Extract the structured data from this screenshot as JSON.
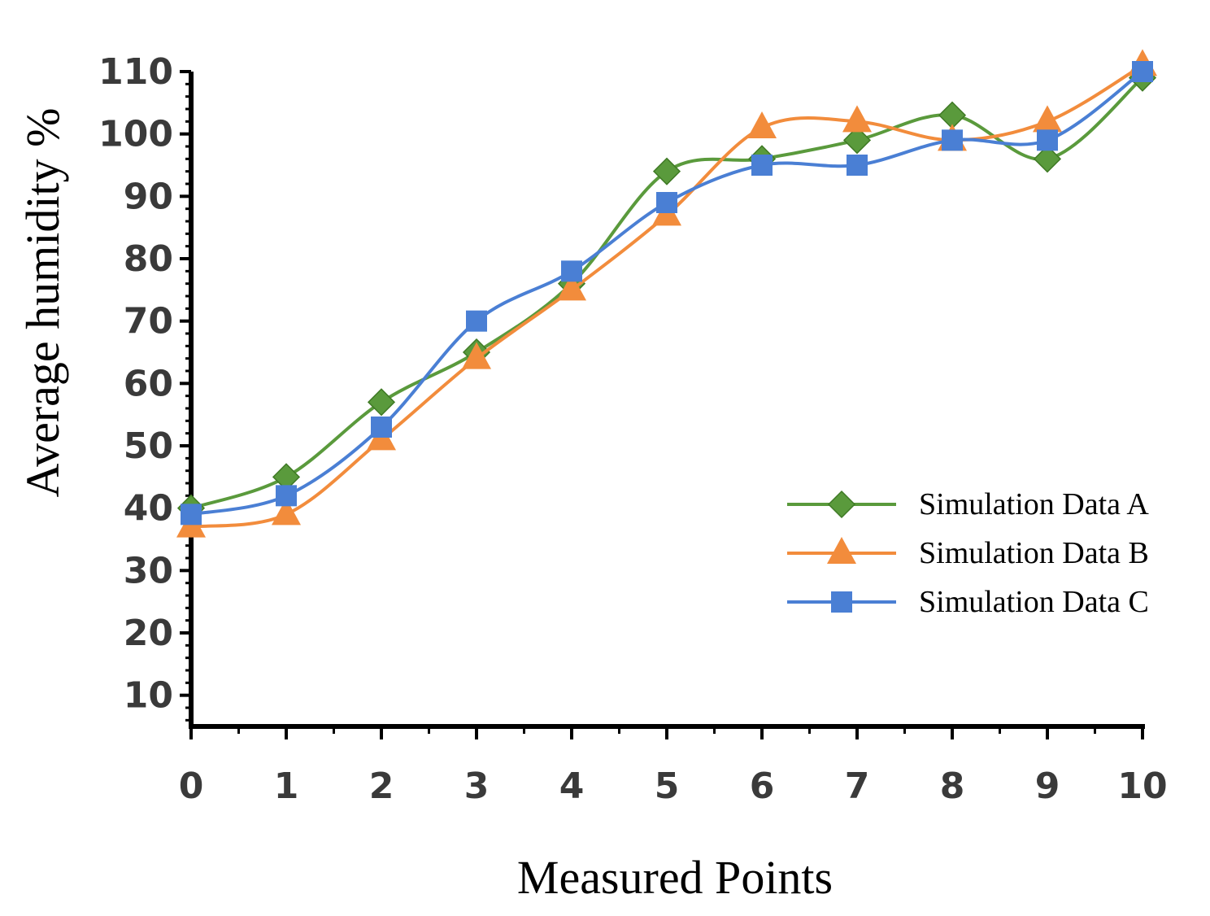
{
  "chart_data": {
    "type": "line",
    "title": "",
    "xlabel": "Measured Points",
    "ylabel": "Average humidity %",
    "x": [
      0,
      1,
      2,
      3,
      4,
      5,
      6,
      7,
      8,
      9,
      10
    ],
    "xlim": [
      0,
      10
    ],
    "ylim": [
      5,
      110
    ],
    "xticks": [
      "0",
      "1",
      "2",
      "3",
      "4",
      "5",
      "6",
      "7",
      "8",
      "9",
      "10"
    ],
    "yticks": [
      10,
      20,
      30,
      40,
      50,
      60,
      70,
      80,
      90,
      100,
      110
    ],
    "grid": false,
    "legend_position": "right",
    "series": [
      {
        "name": "Simulation Data A",
        "color": "#5a9a3c",
        "marker": "diamond",
        "values": [
          40,
          45,
          57,
          65,
          76,
          94,
          96,
          99,
          103,
          96,
          109
        ]
      },
      {
        "name": "Simulation Data B",
        "color": "#f28c3c",
        "marker": "triangle",
        "values": [
          37,
          39,
          51,
          64,
          75,
          87,
          101,
          102,
          99,
          102,
          111
        ]
      },
      {
        "name": "Simulation Data C",
        "color": "#4a7fd4",
        "marker": "square",
        "values": [
          39,
          42,
          53,
          70,
          78,
          89,
          95,
          95,
          99,
          99,
          110
        ]
      }
    ]
  }
}
